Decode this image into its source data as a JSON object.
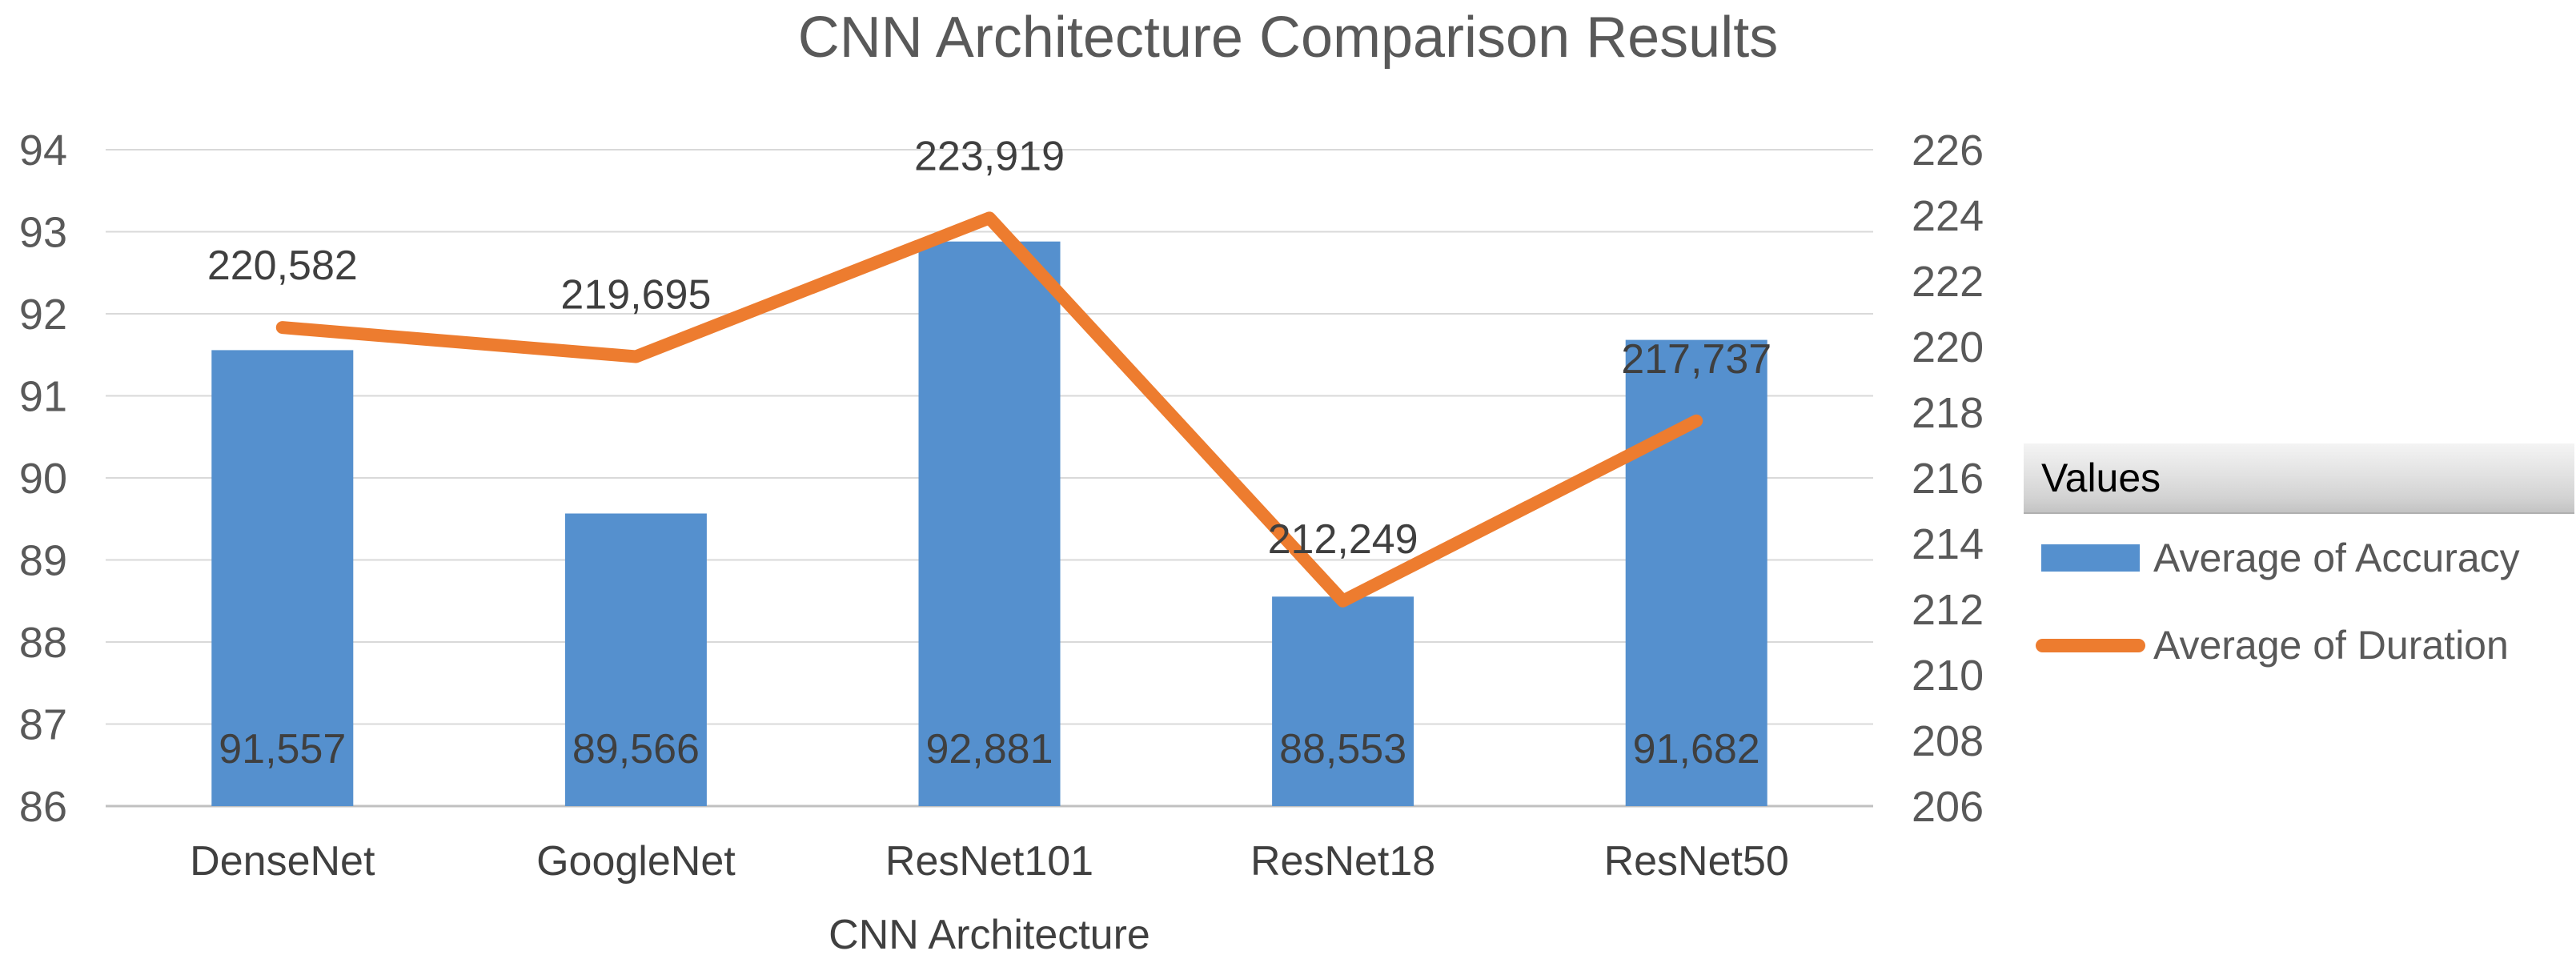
{
  "title": "CNN Architecture Comparison Results",
  "x_axis_title": "CNN Architecture",
  "legend": {
    "header": "Values",
    "items": [
      {
        "label": "Average of Accuracy",
        "marker": "bar-swatch",
        "color": "#5590CE"
      },
      {
        "label": "Average of Duration",
        "marker": "line-swatch",
        "color": "#ED7C2F"
      }
    ]
  },
  "colors": {
    "bar": "#5590CE",
    "line": "#ED7C2F",
    "gridline": "#D9D9D9",
    "axis_line": "#C0C0C0",
    "tick_text": "#595959",
    "data_label_text": "#3F3F3F",
    "category_text": "#404040"
  },
  "chart_data": {
    "type": "bar",
    "subtype": "combo-bar-line-dual-axis",
    "title": "CNN Architecture Comparison Results",
    "xlabel": "CNN Architecture",
    "grid": true,
    "legend_position": "right",
    "categories": [
      "DenseNet",
      "GoogleNet",
      "ResNet101",
      "ResNet18",
      "ResNet50"
    ],
    "series": [
      {
        "name": "Average of Accuracy",
        "type": "bar",
        "axis": "left",
        "values": [
          91.557,
          89.566,
          92.881,
          88.553,
          91.682
        ],
        "labels": [
          "91,557",
          "89,566",
          "92,881",
          "88,553",
          "91,682"
        ]
      },
      {
        "name": "Average of Duration",
        "type": "line",
        "axis": "right",
        "values": [
          220.582,
          219.695,
          223.919,
          212.249,
          217.737
        ],
        "labels": [
          "220,582",
          "219,695",
          "223,919",
          "212,249",
          "217,737"
        ]
      }
    ],
    "left_axis": {
      "min": 86,
      "max": 94,
      "step": 1,
      "ticks": [
        "94",
        "93",
        "92",
        "91",
        "90",
        "89",
        "88",
        "87",
        "86"
      ]
    },
    "right_axis": {
      "min": 206,
      "max": 226,
      "step": 2,
      "ticks": [
        "226",
        "224",
        "222",
        "220",
        "218",
        "216",
        "214",
        "212",
        "210",
        "208",
        "206"
      ]
    }
  }
}
